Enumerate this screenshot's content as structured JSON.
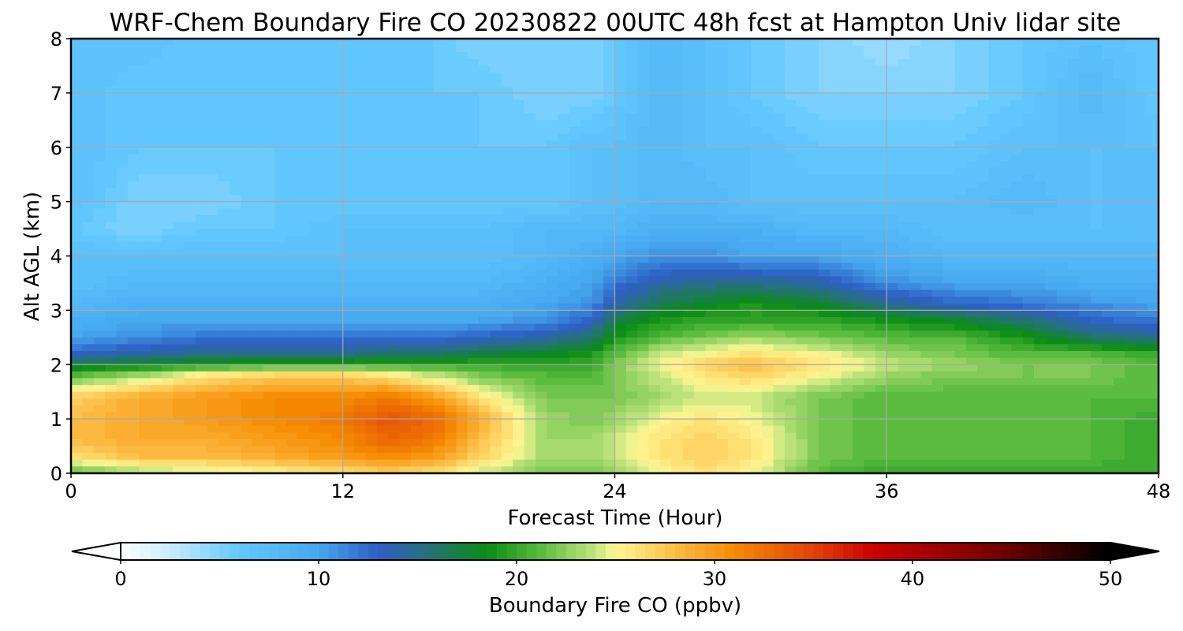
{
  "chart_data": {
    "type": "heatmap",
    "title": "WRF-Chem Boundary Fire CO  20230822 00UTC 48h fcst at Hampton Univ lidar site",
    "xlabel": "Forecast Time (Hour)",
    "ylabel": "Alt AGL (km)",
    "xlim": [
      0,
      48
    ],
    "ylim": [
      0,
      8
    ],
    "x_ticks": [
      0,
      12,
      24,
      36,
      48
    ],
    "y_ticks": [
      0,
      1,
      2,
      3,
      4,
      5,
      6,
      7,
      8
    ],
    "grid": true,
    "x": [
      0,
      3,
      6,
      9,
      12,
      14,
      16,
      18,
      21,
      23,
      24,
      26,
      28,
      30,
      33,
      36,
      39,
      42,
      45,
      48
    ],
    "y": [
      0,
      0.3,
      0.6,
      1.0,
      1.4,
      1.8,
      2.0,
      2.2,
      2.5,
      2.8,
      3.1,
      3.5,
      4.0,
      4.5,
      5.0,
      6.0,
      7.0,
      8.0
    ],
    "z": [
      [
        21,
        23,
        24,
        25,
        26,
        27,
        26,
        24,
        22,
        22,
        23,
        25,
        26,
        25,
        21,
        20,
        20,
        20,
        20,
        20
      ],
      [
        26,
        28,
        28,
        29,
        30,
        31,
        30,
        27,
        23,
        23,
        24,
        26,
        27,
        26,
        22,
        21,
        21,
        21,
        21,
        20
      ],
      [
        28,
        29,
        29,
        30,
        31,
        33,
        32,
        28,
        23,
        23,
        24,
        26,
        27,
        26,
        22,
        21,
        21,
        21,
        21,
        20
      ],
      [
        28,
        29,
        30,
        31,
        32,
        34,
        33,
        29,
        23,
        22,
        23,
        25,
        26,
        25,
        22,
        21,
        21,
        21,
        21,
        20
      ],
      [
        27,
        29,
        30,
        31,
        31,
        32,
        30,
        26,
        22,
        22,
        22,
        23,
        24,
        24,
        22,
        21,
        21,
        21,
        21,
        21
      ],
      [
        21,
        23,
        26,
        27,
        27,
        26,
        24,
        22,
        21,
        21,
        22,
        24,
        26,
        27,
        25,
        23,
        22,
        22,
        22,
        21
      ],
      [
        17,
        18,
        19,
        20,
        20,
        20,
        20,
        20,
        20,
        20,
        22,
        25,
        27,
        28,
        26,
        24,
        23,
        22,
        22,
        21
      ],
      [
        13,
        14,
        15,
        15,
        15,
        16,
        16,
        17,
        18,
        19,
        21,
        24,
        25,
        26,
        25,
        23,
        22,
        21,
        21,
        20
      ],
      [
        10,
        11,
        12,
        12,
        12,
        12,
        12,
        13,
        14,
        16,
        19,
        21,
        22,
        23,
        22,
        21,
        21,
        19,
        16,
        15
      ],
      [
        9,
        10,
        10,
        10,
        10,
        10,
        10,
        10,
        11,
        13,
        17,
        19,
        20,
        20,
        20,
        19,
        18,
        16,
        13,
        12
      ],
      [
        8,
        9,
        9,
        9,
        9,
        9,
        9,
        9,
        10,
        11,
        14,
        17,
        18,
        19,
        18,
        15,
        13,
        12,
        11,
        10
      ],
      [
        7,
        8,
        8,
        8,
        8,
        8,
        8,
        8,
        9,
        10,
        12,
        14,
        15,
        15,
        14,
        11,
        10,
        10,
        9,
        9
      ],
      [
        7,
        7,
        7,
        7,
        7,
        7,
        7,
        7,
        8,
        9,
        10,
        11,
        11,
        10,
        10,
        9,
        8,
        8,
        8,
        8
      ],
      [
        6,
        5,
        6,
        6,
        7,
        7,
        7,
        7,
        8,
        8,
        8,
        9,
        9,
        9,
        8,
        8,
        7,
        7,
        7,
        7
      ],
      [
        7,
        5,
        5,
        6,
        6,
        6,
        6,
        6,
        6,
        7,
        7,
        8,
        8,
        7,
        7,
        7,
        7,
        8,
        7,
        7
      ],
      [
        7,
        6,
        6,
        6,
        6,
        6,
        6,
        6,
        6,
        7,
        7,
        8,
        7,
        7,
        6,
        6,
        6,
        7,
        7,
        7
      ],
      [
        7,
        6,
        6,
        6,
        6,
        6,
        6,
        6,
        5,
        5,
        6,
        8,
        7,
        6,
        5,
        5,
        5,
        6,
        8,
        6
      ],
      [
        7,
        7,
        6,
        6,
        6,
        6,
        6,
        5,
        5,
        5,
        6,
        8,
        7,
        6,
        5,
        4,
        5,
        6,
        7,
        6
      ]
    ],
    "colorbar": {
      "label": "Boundary Fire CO  (ppbv)",
      "vmin": 0,
      "vmax": 50,
      "ticks": [
        0,
        10,
        20,
        30,
        40,
        50
      ],
      "extend": "both",
      "stops": [
        {
          "v": 0,
          "c": "#ffffff"
        },
        {
          "v": 2.5,
          "c": "#c8ecff"
        },
        {
          "v": 6,
          "c": "#63c8ff"
        },
        {
          "v": 10,
          "c": "#46a8ef"
        },
        {
          "v": 13,
          "c": "#2d5fc4"
        },
        {
          "v": 15,
          "c": "#2a6e8a"
        },
        {
          "v": 18.5,
          "c": "#0a8c14"
        },
        {
          "v": 21,
          "c": "#52b83a"
        },
        {
          "v": 24,
          "c": "#c5e67e"
        },
        {
          "v": 25,
          "c": "#fff794"
        },
        {
          "v": 28,
          "c": "#fdbd46"
        },
        {
          "v": 31,
          "c": "#f58a00"
        },
        {
          "v": 35,
          "c": "#e0420a"
        },
        {
          "v": 38,
          "c": "#cc0000"
        },
        {
          "v": 44,
          "c": "#7a0000"
        },
        {
          "v": 50,
          "c": "#000000"
        }
      ]
    }
  }
}
